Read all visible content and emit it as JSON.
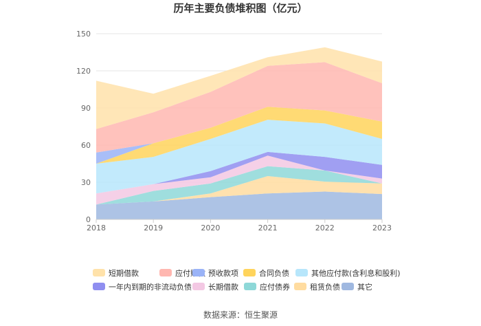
{
  "chart_data": {
    "type": "area",
    "stacked": true,
    "title": "历年主要负债堆积图（亿元）",
    "x": [
      "2018",
      "2019",
      "2020",
      "2021",
      "2022",
      "2023"
    ],
    "ylim": [
      0,
      150
    ],
    "yticks": [
      0,
      30,
      60,
      90,
      120,
      150
    ],
    "grid": true,
    "legend_position": "bottom",
    "source": "数据来源：恒生聚源",
    "series": [
      {
        "name": "其它",
        "color": "#9fb8e0",
        "values": [
          12,
          14.5,
          18,
          21,
          22.5,
          20.5
        ]
      },
      {
        "name": "租赁负债",
        "color": "#ffdca0",
        "values": [
          0,
          0,
          3,
          14,
          8,
          8.5
        ]
      },
      {
        "name": "应付债券",
        "color": "#8ed8d8",
        "values": [
          0,
          8.5,
          8,
          8,
          9,
          0
        ]
      },
      {
        "name": "长期借款",
        "color": "#f3c8e3",
        "values": [
          9,
          5.5,
          5,
          8.5,
          0,
          4
        ]
      },
      {
        "name": "一年内到期的非流动负债",
        "color": "#8f8ef0",
        "values": [
          0,
          0,
          5,
          3,
          11,
          11
        ]
      },
      {
        "name": "其他应付款(含利息和股利)",
        "color": "#b7e6fb",
        "values": [
          24,
          22,
          26,
          26,
          27,
          21
        ]
      },
      {
        "name": "合同负债",
        "color": "#ffd45c",
        "values": [
          0,
          11,
          9,
          10.5,
          10.5,
          14
        ]
      },
      {
        "name": "预收款项",
        "color": "#9ab3f7",
        "values": [
          9,
          0,
          0,
          0,
          0,
          0
        ]
      },
      {
        "name": "应付账款",
        "color": "#ffb7b0",
        "values": [
          19,
          25,
          29,
          33,
          39,
          31
        ]
      },
      {
        "name": "短期借款",
        "color": "#ffe2aa",
        "values": [
          39,
          15,
          13,
          7,
          12,
          17.5
        ]
      }
    ]
  }
}
